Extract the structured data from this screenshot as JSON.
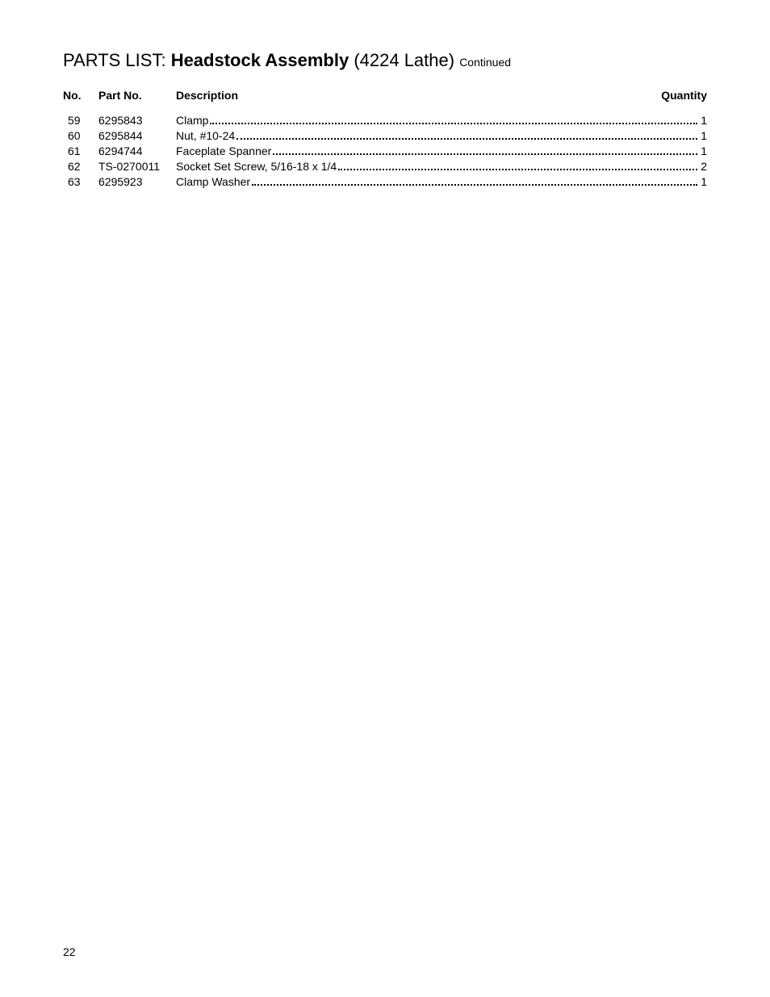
{
  "title": {
    "prefix": "PARTS LIST: ",
    "main": "Headstock Assembly",
    "suffix": " (4224 Lathe) ",
    "continued": "Continued"
  },
  "headers": {
    "no": "No.",
    "partno": "Part No.",
    "description": "Description",
    "quantity": "Quantity"
  },
  "parts": [
    {
      "no": "59",
      "partno": "6295843",
      "description": "Clamp",
      "quantity": "1"
    },
    {
      "no": "60",
      "partno": "6295844",
      "description": "Nut, #10-24",
      "quantity": "1"
    },
    {
      "no": "61",
      "partno": "6294744",
      "description": "Faceplate Spanner",
      "quantity": "1"
    },
    {
      "no": "62",
      "partno": "TS-0270011",
      "description": "Socket Set Screw, 5/16-18 x 1/4",
      "quantity": "2"
    },
    {
      "no": "63",
      "partno": "6295923",
      "description": "Clamp Washer",
      "quantity": "1"
    }
  ],
  "page_number": "22",
  "colors": {
    "text": "#000000",
    "background": "#ffffff"
  },
  "typography": {
    "title_fontsize": 22,
    "body_fontsize": 14,
    "continued_fontsize": 14
  }
}
